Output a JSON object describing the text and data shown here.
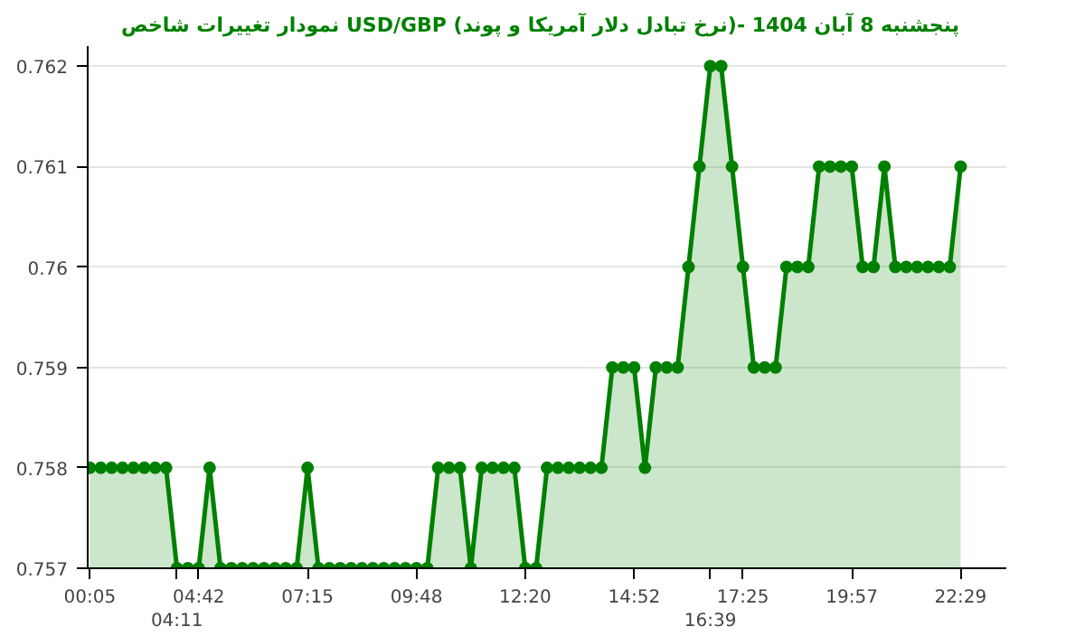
{
  "chart_data": {
    "type": "area",
    "title": "نمودار تغییرات شاخص USD/GBP (نرخ تبادل دلار آمریکا و پوند)-  پنجشنبه  8 آبان 1404",
    "categories": [
      "00:05",
      null,
      null,
      null,
      null,
      null,
      null,
      null,
      "04:11",
      null,
      "04:42",
      null,
      null,
      null,
      null,
      null,
      null,
      null,
      null,
      null,
      "07:15",
      null,
      null,
      null,
      null,
      null,
      null,
      null,
      null,
      null,
      "09:48",
      null,
      null,
      null,
      null,
      null,
      null,
      null,
      null,
      null,
      "12:20",
      null,
      null,
      null,
      null,
      null,
      null,
      null,
      null,
      null,
      "14:52",
      null,
      null,
      null,
      null,
      null,
      null,
      "16:39",
      null,
      null,
      "17:25",
      null,
      null,
      null,
      null,
      null,
      null,
      null,
      null,
      null,
      "19:57",
      null,
      null,
      null,
      null,
      null,
      null,
      null,
      null,
      null,
      "22:29"
    ],
    "series": [
      {
        "color": "#008000",
        "values": [
          0.758,
          0.758,
          0.758,
          0.758,
          0.758,
          0.758,
          0.758,
          0.758,
          0.757,
          0.757,
          0.757,
          0.758,
          0.757,
          0.757,
          0.757,
          0.757,
          0.757,
          0.757,
          0.757,
          0.757,
          0.758,
          0.757,
          0.757,
          0.757,
          0.757,
          0.757,
          0.757,
          0.757,
          0.757,
          0.757,
          0.757,
          0.757,
          0.758,
          0.758,
          0.758,
          0.757,
          0.758,
          0.758,
          0.758,
          0.758,
          0.757,
          0.757,
          0.758,
          0.758,
          0.758,
          0.758,
          0.758,
          0.758,
          0.759,
          0.759,
          0.759,
          0.758,
          0.759,
          0.759,
          0.759,
          0.76,
          0.761,
          0.762,
          0.762,
          0.761,
          0.76,
          0.759,
          0.759,
          0.759,
          0.76,
          0.76,
          0.76,
          0.761,
          0.761,
          0.761,
          0.761,
          0.76,
          0.76,
          0.761,
          0.76,
          0.76,
          0.76,
          0.76,
          0.76,
          0.76,
          0.761
        ]
      }
    ],
    "ylim": [
      0.757,
      0.7622
    ],
    "yticks": [
      0.757,
      0.758,
      0.759,
      0.76,
      0.761,
      0.762
    ],
    "grid": "y",
    "marker": "circle",
    "line_style": "solid"
  }
}
